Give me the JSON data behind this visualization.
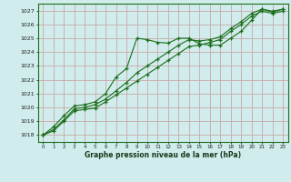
{
  "title": "Graphe pression niveau de la mer (hPa)",
  "bg_color": "#d0ecec",
  "plot_bg_color": "#d0ecec",
  "grid_color": "#c8a8a8",
  "line_color": "#1a6e1a",
  "border_color": "#1a6e1a",
  "xlim": [
    -0.5,
    23.5
  ],
  "ylim": [
    1017.5,
    1027.5
  ],
  "yticks": [
    1018,
    1019,
    1020,
    1021,
    1022,
    1023,
    1024,
    1025,
    1026,
    1027
  ],
  "xticks": [
    0,
    1,
    2,
    3,
    4,
    5,
    6,
    7,
    8,
    9,
    10,
    11,
    12,
    13,
    14,
    15,
    16,
    17,
    18,
    19,
    20,
    21,
    22,
    23
  ],
  "series1": [
    1018.0,
    1018.6,
    1019.4,
    1020.1,
    1020.2,
    1020.4,
    1021.0,
    1022.2,
    1022.8,
    1025.0,
    1024.9,
    1024.7,
    1024.65,
    1025.0,
    1025.0,
    1024.6,
    1024.5,
    1024.5,
    1025.0,
    1025.5,
    1026.3,
    1027.1,
    1026.9,
    1027.1
  ],
  "series2": [
    1018.0,
    1018.4,
    1019.1,
    1019.9,
    1020.0,
    1020.2,
    1020.6,
    1021.2,
    1021.8,
    1022.5,
    1023.0,
    1023.5,
    1024.0,
    1024.5,
    1024.9,
    1024.8,
    1024.9,
    1025.1,
    1025.7,
    1026.2,
    1026.8,
    1027.1,
    1026.95,
    1027.1
  ],
  "series3": [
    1018.0,
    1018.3,
    1019.0,
    1019.75,
    1019.85,
    1019.95,
    1020.4,
    1020.9,
    1021.4,
    1021.9,
    1022.4,
    1022.9,
    1023.4,
    1023.9,
    1024.4,
    1024.5,
    1024.7,
    1024.9,
    1025.5,
    1026.0,
    1026.6,
    1026.95,
    1026.8,
    1026.95
  ]
}
